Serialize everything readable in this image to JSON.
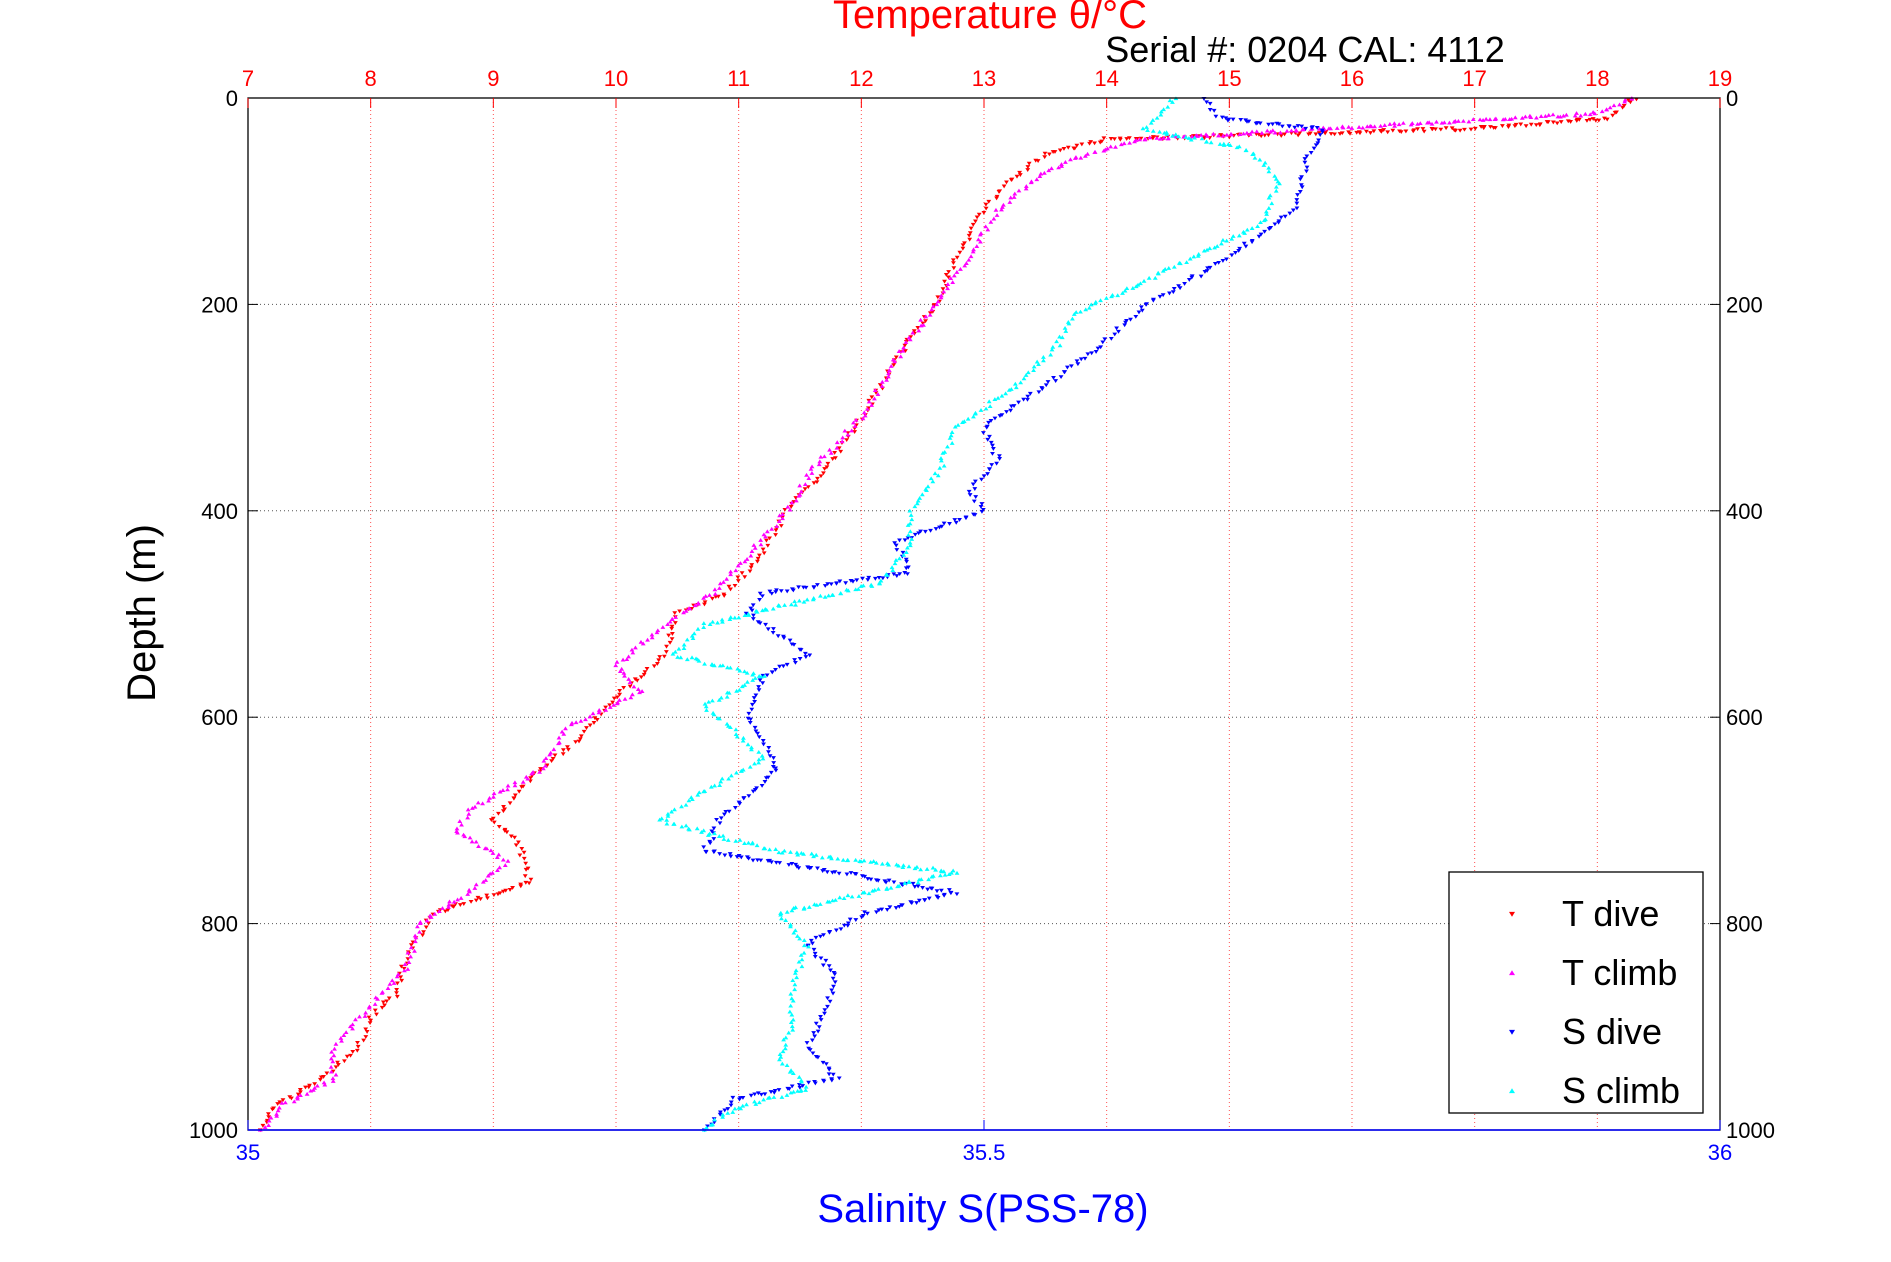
{
  "chart_data": {
    "type": "scatter",
    "title": "Temperature θ/°C",
    "subtitle": "Serial #: 0204  CAL: 4112",
    "ylabel": "Depth (m)",
    "xlabel": "Salinity S(PSS-78)",
    "y_reversed": true,
    "ylim": [
      0,
      1000
    ],
    "y_ticks": [
      "0",
      "200",
      "400",
      "600",
      "800",
      "1000"
    ],
    "top_axis": {
      "label": "Temperature θ/°C",
      "range": [
        7,
        19
      ],
      "ticks": [
        "7",
        "8",
        "9",
        "10",
        "11",
        "12",
        "13",
        "14",
        "15",
        "16",
        "17",
        "18",
        "19"
      ],
      "color": "#ff0000"
    },
    "bottom_axis": {
      "label": "Salinity S(PSS-78)",
      "range": [
        35,
        36
      ],
      "ticks": [
        "35",
        "35.5",
        "36"
      ],
      "color": "#0000ff"
    },
    "grid": true,
    "legend": {
      "placement": "bottom-right",
      "entries": [
        "T dive",
        "T climb",
        "S dive",
        "S climb"
      ]
    },
    "series": [
      {
        "name": "T dive",
        "axis": "top",
        "marker": "triangle-down",
        "color": "#ff0000",
        "points": [
          [
            18.3,
            0
          ],
          [
            18.1,
            20
          ],
          [
            16.9,
            30
          ],
          [
            15.5,
            35
          ],
          [
            14.0,
            40
          ],
          [
            13.5,
            55
          ],
          [
            13.2,
            80
          ],
          [
            13.0,
            110
          ],
          [
            12.8,
            150
          ],
          [
            12.6,
            200
          ],
          [
            12.3,
            250
          ],
          [
            12.0,
            310
          ],
          [
            11.7,
            360
          ],
          [
            11.4,
            400
          ],
          [
            11.2,
            440
          ],
          [
            10.9,
            480
          ],
          [
            10.5,
            500
          ],
          [
            10.4,
            540
          ],
          [
            10.0,
            580
          ],
          [
            9.7,
            620
          ],
          [
            9.3,
            660
          ],
          [
            9.0,
            700
          ],
          [
            9.2,
            720
          ],
          [
            9.3,
            760
          ],
          [
            8.5,
            790
          ],
          [
            8.3,
            830
          ],
          [
            8.2,
            870
          ],
          [
            8.0,
            890
          ],
          [
            7.9,
            920
          ],
          [
            7.6,
            950
          ],
          [
            7.2,
            980
          ],
          [
            7.1,
            1000
          ]
        ]
      },
      {
        "name": "T climb",
        "axis": "top",
        "marker": "triangle-up",
        "color": "#ff00ff",
        "points": [
          [
            18.3,
            0
          ],
          [
            18.0,
            15
          ],
          [
            16.5,
            25
          ],
          [
            15.0,
            35
          ],
          [
            14.3,
            40
          ],
          [
            13.7,
            60
          ],
          [
            13.4,
            80
          ],
          [
            13.1,
            110
          ],
          [
            12.9,
            150
          ],
          [
            12.6,
            200
          ],
          [
            12.3,
            250
          ],
          [
            12.0,
            310
          ],
          [
            11.6,
            360
          ],
          [
            11.4,
            400
          ],
          [
            11.1,
            440
          ],
          [
            10.8,
            480
          ],
          [
            10.4,
            510
          ],
          [
            10.0,
            550
          ],
          [
            10.2,
            575
          ],
          [
            9.6,
            610
          ],
          [
            9.4,
            650
          ],
          [
            8.8,
            690
          ],
          [
            8.7,
            710
          ],
          [
            9.1,
            740
          ],
          [
            8.8,
            770
          ],
          [
            8.4,
            800
          ],
          [
            8.3,
            840
          ],
          [
            8.0,
            880
          ],
          [
            7.7,
            920
          ],
          [
            7.7,
            950
          ],
          [
            7.3,
            975
          ],
          [
            7.1,
            1000
          ]
        ]
      },
      {
        "name": "S dive",
        "axis": "bottom",
        "marker": "triangle-down",
        "color": "#0000ff",
        "points": [
          [
            35.65,
            0
          ],
          [
            35.66,
            20
          ],
          [
            35.73,
            30
          ],
          [
            35.72,
            60
          ],
          [
            35.71,
            110
          ],
          [
            35.66,
            160
          ],
          [
            35.61,
            200
          ],
          [
            35.58,
            240
          ],
          [
            35.54,
            280
          ],
          [
            35.5,
            320
          ],
          [
            35.51,
            350
          ],
          [
            35.49,
            380
          ],
          [
            35.5,
            400
          ],
          [
            35.44,
            430
          ],
          [
            35.45,
            460
          ],
          [
            35.35,
            480
          ],
          [
            35.34,
            500
          ],
          [
            35.38,
            540
          ],
          [
            35.35,
            560
          ],
          [
            35.34,
            600
          ],
          [
            35.36,
            650
          ],
          [
            35.32,
            700
          ],
          [
            35.31,
            730
          ],
          [
            35.4,
            750
          ],
          [
            35.48,
            770
          ],
          [
            35.42,
            790
          ],
          [
            35.38,
            820
          ],
          [
            35.4,
            850
          ],
          [
            35.39,
            890
          ],
          [
            35.38,
            920
          ],
          [
            35.4,
            950
          ],
          [
            35.33,
            970
          ],
          [
            35.31,
            1000
          ]
        ]
      },
      {
        "name": "S climb",
        "axis": "bottom",
        "marker": "triangle-up",
        "color": "#00ffff",
        "points": [
          [
            35.63,
            0
          ],
          [
            35.61,
            30
          ],
          [
            35.68,
            50
          ],
          [
            35.7,
            80
          ],
          [
            35.69,
            120
          ],
          [
            35.62,
            170
          ],
          [
            35.56,
            210
          ],
          [
            35.55,
            240
          ],
          [
            35.52,
            280
          ],
          [
            35.48,
            320
          ],
          [
            35.47,
            360
          ],
          [
            35.45,
            400
          ],
          [
            35.45,
            430
          ],
          [
            35.43,
            470
          ],
          [
            35.37,
            490
          ],
          [
            35.31,
            510
          ],
          [
            35.29,
            540
          ],
          [
            35.35,
            560
          ],
          [
            35.31,
            590
          ],
          [
            35.32,
            600
          ],
          [
            35.35,
            640
          ],
          [
            35.3,
            680
          ],
          [
            35.28,
            700
          ],
          [
            35.36,
            730
          ],
          [
            35.48,
            750
          ],
          [
            35.36,
            790
          ],
          [
            35.38,
            820
          ],
          [
            35.37,
            860
          ],
          [
            35.37,
            900
          ],
          [
            35.36,
            930
          ],
          [
            35.38,
            960
          ],
          [
            35.33,
            980
          ],
          [
            35.31,
            1000
          ]
        ]
      }
    ]
  }
}
